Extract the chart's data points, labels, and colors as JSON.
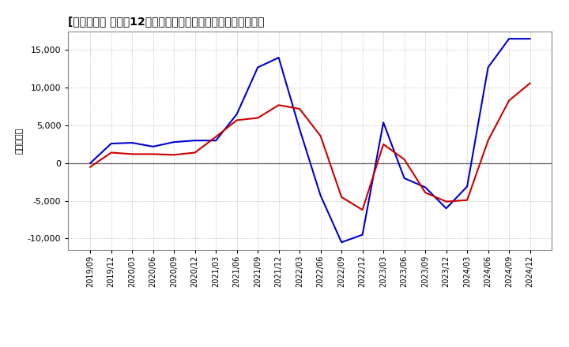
{
  "title": "[５９４７］ 利益の12か月移動合計の対前年同期増減額の推移",
  "ylabel": "（百万円）",
  "x_labels": [
    "2019/09",
    "2019/12",
    "2020/03",
    "2020/06",
    "2020/09",
    "2020/12",
    "2021/03",
    "2021/06",
    "2021/09",
    "2021/12",
    "2022/03",
    "2022/06",
    "2022/09",
    "2022/12",
    "2023/03",
    "2023/06",
    "2023/09",
    "2023/12",
    "2024/03",
    "2024/06",
    "2024/09",
    "2024/12"
  ],
  "blue_y": [
    0,
    2600,
    2700,
    2200,
    2800,
    3000,
    3000,
    6500,
    12700,
    14000,
    4500,
    -4300,
    -10500,
    -9500,
    5400,
    -2000,
    -3200,
    -6000,
    -3100,
    12700,
    16500,
    16500
  ],
  "red_y": [
    -500,
    1400,
    1200,
    1200,
    1100,
    1400,
    3500,
    5700,
    6000,
    7700,
    7200,
    3600,
    -4500,
    -6200,
    2500,
    500,
    -3900,
    -5100,
    -4900,
    3000,
    8300,
    10600
  ],
  "keijo_color": "#0000cc",
  "touki_color": "#cc0000",
  "background_color": "#ffffff",
  "grid_color": "#999999",
  "ylim": [
    -11500,
    17500
  ],
  "yticks": [
    -10000,
    -5000,
    0,
    5000,
    10000,
    15000
  ]
}
